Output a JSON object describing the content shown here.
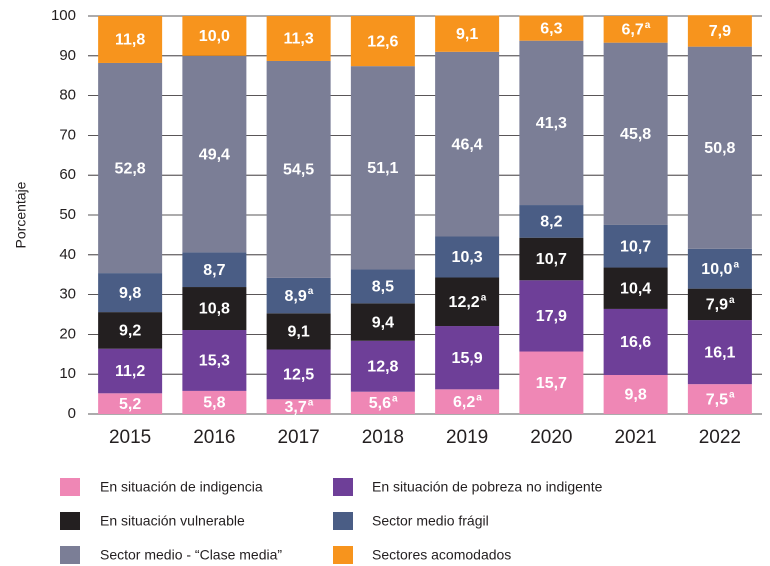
{
  "chart_data": {
    "type": "stacked_bar",
    "y_label": "Porcentaje",
    "categories": [
      "2015",
      "2016",
      "2017",
      "2018",
      "2019",
      "2020",
      "2021",
      "2022"
    ],
    "ylim": [
      0,
      100
    ],
    "yticks": [
      0,
      10,
      20,
      30,
      40,
      50,
      60,
      70,
      80,
      90,
      100
    ],
    "grid": true,
    "series": [
      {
        "name": "En situación de indigencia",
        "color": "#ef87b5",
        "values": [
          5.2,
          5.8,
          3.7,
          5.6,
          6.2,
          15.7,
          9.8,
          7.5
        ],
        "value_labels": [
          "5,2",
          "5,8",
          "3,7",
          "5,6",
          "6,2",
          "15,7",
          "9,8",
          "7,5"
        ],
        "value_label_notes": [
          null,
          null,
          "a",
          "a",
          "a",
          null,
          null,
          "a"
        ]
      },
      {
        "name": "En situación de pobreza no indigente",
        "color": "#6e3f98",
        "values": [
          11.2,
          15.3,
          12.5,
          12.8,
          15.9,
          17.9,
          16.6,
          16.1
        ],
        "value_labels": [
          "11,2",
          "15,3",
          "12,5",
          "12,8",
          "15,9",
          "17,9",
          "16,6",
          "16,1"
        ],
        "value_label_notes": [
          null,
          null,
          null,
          null,
          null,
          null,
          null,
          null
        ]
      },
      {
        "name": "En situación vulnerable",
        "color": "#231f20",
        "values": [
          9.2,
          10.8,
          9.1,
          9.4,
          12.2,
          10.7,
          10.4,
          7.9
        ],
        "value_labels": [
          "9,2",
          "10,8",
          "9,1",
          "9,4",
          "12,2",
          "10,7",
          "10,4",
          "7,9"
        ],
        "value_label_notes": [
          null,
          null,
          null,
          null,
          "a",
          null,
          null,
          "a"
        ]
      },
      {
        "name": "Sector medio frágil",
        "color": "#4a5d85",
        "values": [
          9.8,
          8.7,
          8.9,
          8.5,
          10.3,
          8.2,
          10.7,
          10.0
        ],
        "value_labels": [
          "9,8",
          "8,7",
          "8,9",
          "8,5",
          "10,3",
          "8,2",
          "10,7",
          "10,0"
        ],
        "value_label_notes": [
          null,
          null,
          "a",
          null,
          null,
          null,
          null,
          "a"
        ]
      },
      {
        "name": "Sector medio - “Clase media”",
        "color": "#7b7e96",
        "values": [
          52.8,
          49.4,
          54.5,
          51.1,
          46.4,
          41.3,
          45.8,
          50.8
        ],
        "value_labels": [
          "52,8",
          "49,4",
          "54,5",
          "51,1",
          "46,4",
          "41,3",
          "45,8",
          "50,8"
        ],
        "value_label_notes": [
          null,
          null,
          null,
          null,
          null,
          null,
          null,
          null
        ]
      },
      {
        "name": "Sectores acomodados",
        "color": "#f7941d",
        "values": [
          11.8,
          10.0,
          11.3,
          12.6,
          9.1,
          6.3,
          6.7,
          7.9
        ],
        "value_labels": [
          "11,8",
          "10,0",
          "11,3",
          "12,6",
          "9,1",
          "6,3",
          "6,7",
          "7,9"
        ],
        "value_label_notes": [
          null,
          null,
          null,
          null,
          null,
          null,
          "a",
          null
        ]
      }
    ]
  }
}
